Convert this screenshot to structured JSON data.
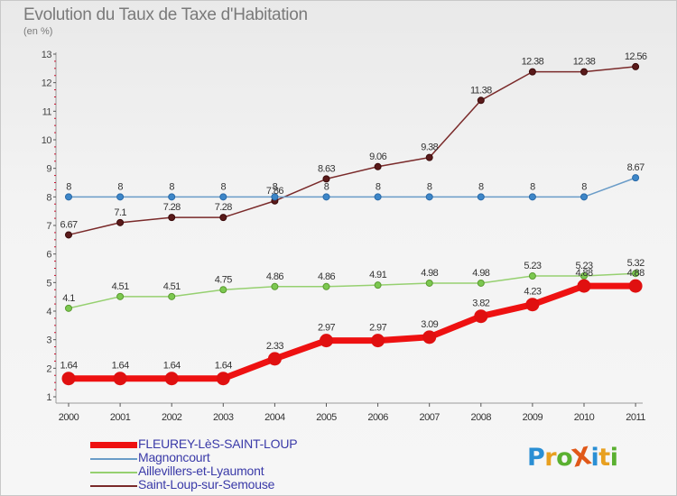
{
  "title": "Evolution du Taux de Taxe d'Habitation",
  "subtitle": "(en %)",
  "logo": {
    "text": "ProXiti",
    "letters": [
      {
        "ch": "P",
        "color": "#2a8fd4"
      },
      {
        "ch": "r",
        "color": "#e8a020"
      },
      {
        "ch": "o",
        "color": "#5ab030"
      },
      {
        "ch": "X",
        "color": "#e05818"
      },
      {
        "ch": "i",
        "color": "#2a8fd4"
      },
      {
        "ch": "t",
        "color": "#e8a020"
      },
      {
        "ch": "i",
        "color": "#5ab030"
      }
    ]
  },
  "chart_data": {
    "type": "line",
    "title": "Evolution du Taux de Taxe d'Habitation",
    "subtitle": "(en %)",
    "ylim": [
      1,
      13
    ],
    "yticks": [
      "1",
      "2",
      "3",
      "4",
      "5",
      "6",
      "7",
      "8",
      "9",
      "10",
      "11",
      "12",
      "13"
    ],
    "x": [
      "2000",
      "2001",
      "2002",
      "2003",
      "2004",
      "2005",
      "2006",
      "2007",
      "2008",
      "2009",
      "2010",
      "2011"
    ],
    "grid": false,
    "legend_position": "bottom-left",
    "series": [
      {
        "name": "Saint-Loup-sur-Semouse",
        "color": "#7a2a2a",
        "values": [
          6.67,
          7.1,
          7.28,
          7.28,
          7.86,
          8.63,
          9.06,
          9.38,
          11.38,
          12.38,
          12.38,
          12.56
        ],
        "labels": [
          "6.67",
          "7.1",
          "7.28",
          "7.28",
          "7.86",
          "8.63",
          "9.06",
          "9.38",
          "11.38",
          "12.38",
          "12.38",
          "12.56"
        ]
      },
      {
        "name": "Magnoncourt",
        "color": "#6a9cc8",
        "values": [
          8,
          8,
          8,
          8,
          8,
          8,
          8,
          8,
          8,
          8,
          8,
          8.67
        ],
        "labels": [
          "8",
          "8",
          "8",
          "8",
          "8",
          "8",
          "8",
          "8",
          "8",
          "8",
          "8",
          "8.67"
        ]
      },
      {
        "name": "Aillevillers-et-Lyaumont",
        "color": "#96d070",
        "values": [
          4.1,
          4.51,
          4.51,
          4.75,
          4.86,
          4.86,
          4.91,
          4.98,
          4.98,
          5.23,
          5.23,
          5.32
        ],
        "labels": [
          "4.1",
          "4.51",
          "4.51",
          "4.75",
          "4.86",
          "4.86",
          "4.91",
          "4.98",
          "4.98",
          "5.23",
          "5.23",
          "5.32"
        ]
      },
      {
        "name": "FLEUREY-LèS-SAINT-LOUP",
        "color": "#ee1111",
        "values": [
          1.64,
          1.64,
          1.64,
          1.64,
          2.33,
          2.97,
          2.97,
          3.09,
          3.82,
          4.23,
          4.88,
          4.88
        ],
        "labels": [
          "1.64",
          "1.64",
          "1.64",
          "1.64",
          "2.33",
          "2.97",
          "2.97",
          "3.09",
          "3.82",
          "4.23",
          "4.88",
          "4.88"
        ]
      }
    ],
    "legend": [
      {
        "name": "FLEUREY-LèS-SAINT-LOUP",
        "color": "#ee1111"
      },
      {
        "name": "Magnoncourt",
        "color": "#6a9cc8"
      },
      {
        "name": "Aillevillers-et-Lyaumont",
        "color": "#96d070"
      },
      {
        "name": "Saint-Loup-sur-Semouse",
        "color": "#7a2a2a"
      }
    ]
  }
}
